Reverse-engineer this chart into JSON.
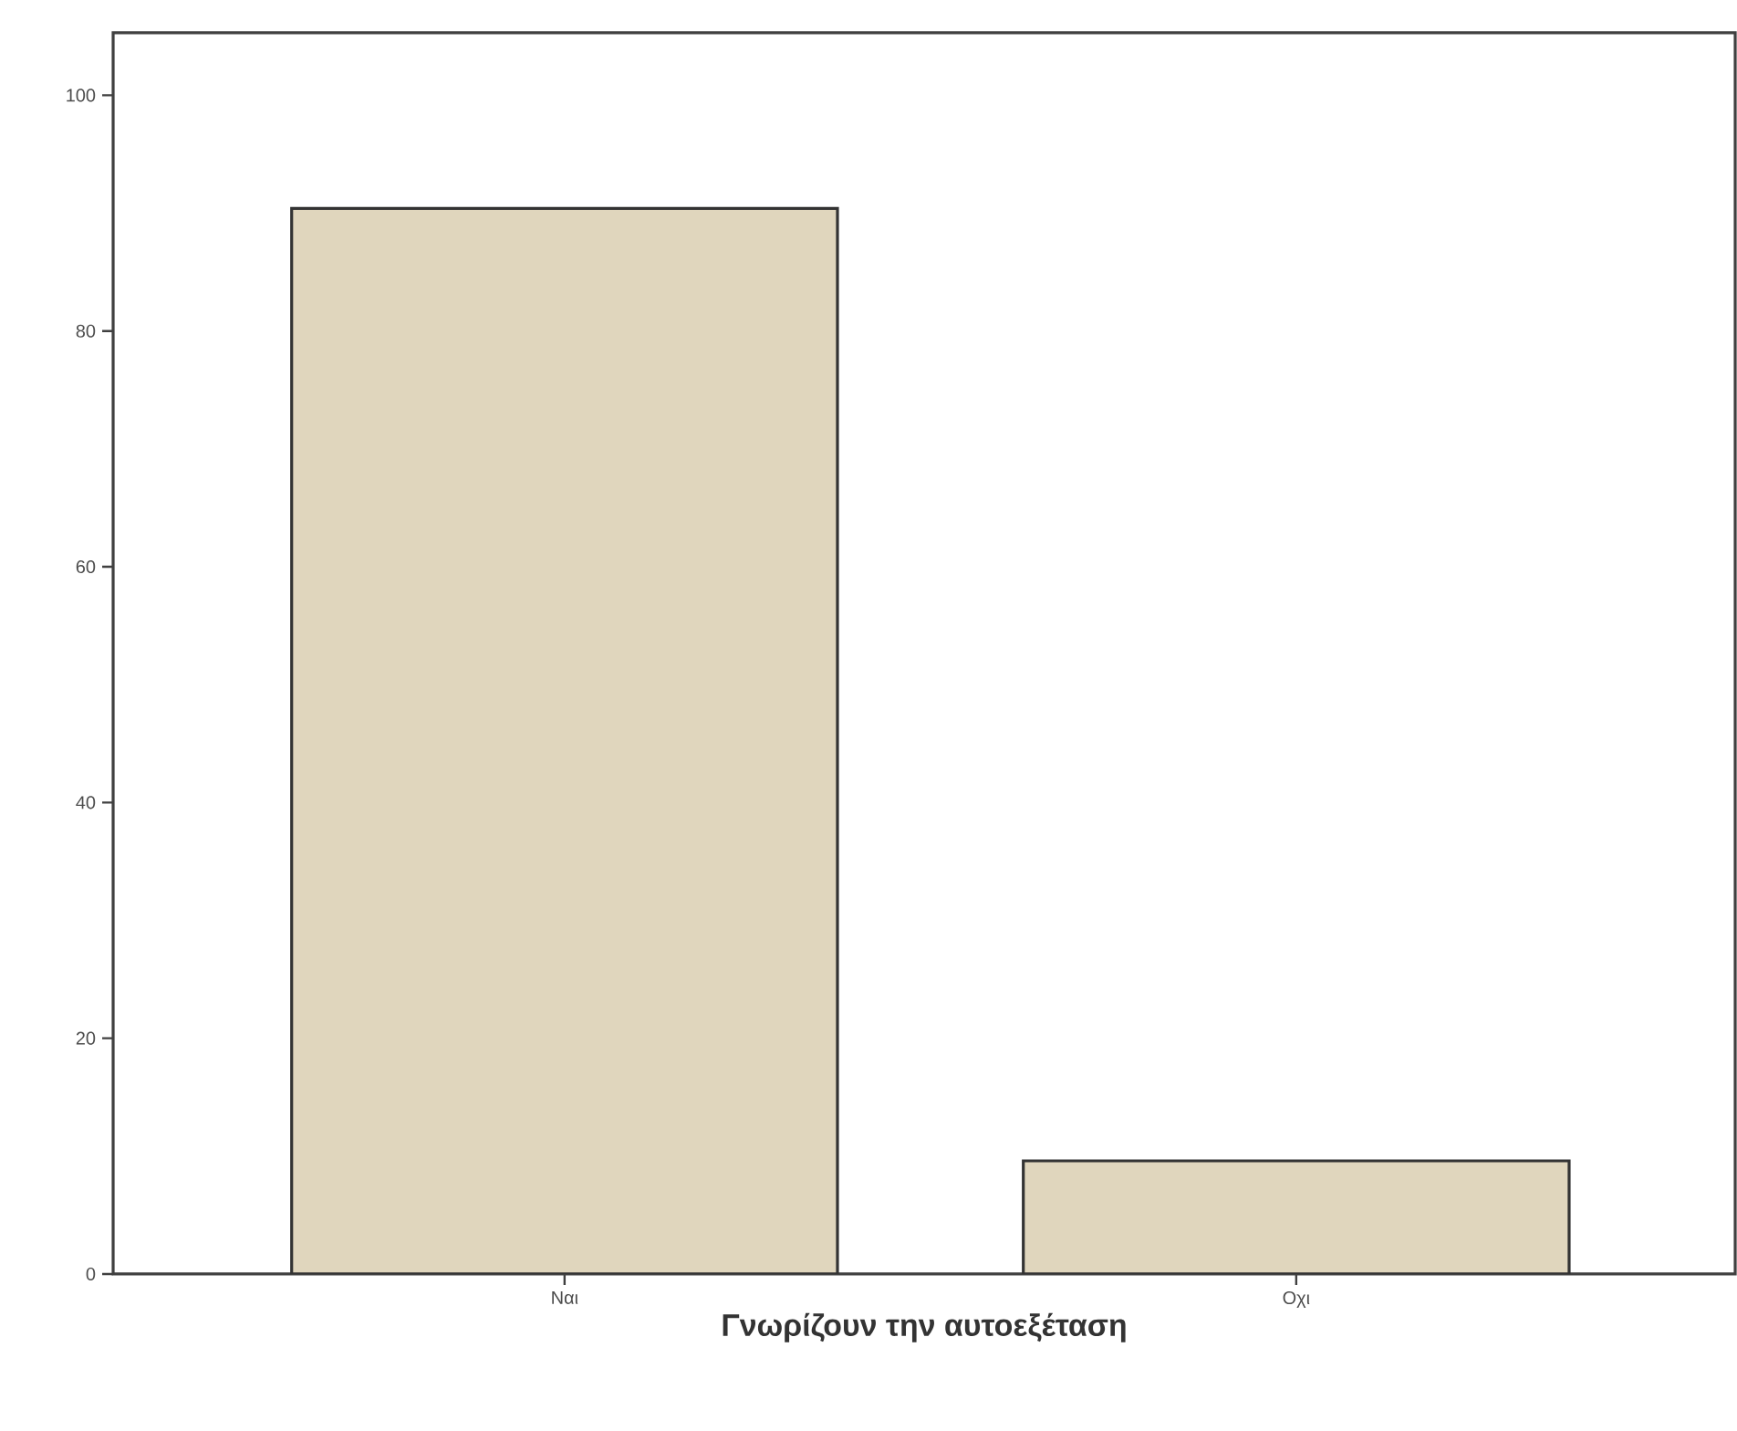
{
  "chart_data": {
    "type": "bar",
    "xlabel": "Γνωρίζουν την αυτοεξέταση",
    "categories": [
      "Ναι",
      "Οχι"
    ],
    "values": [
      90.4,
      9.6
    ],
    "color": "#e0d6bd",
    "ylim": [
      0,
      105.3
    ],
    "yticks": [
      0,
      20,
      40,
      60,
      80,
      100
    ],
    "grid": false
  }
}
